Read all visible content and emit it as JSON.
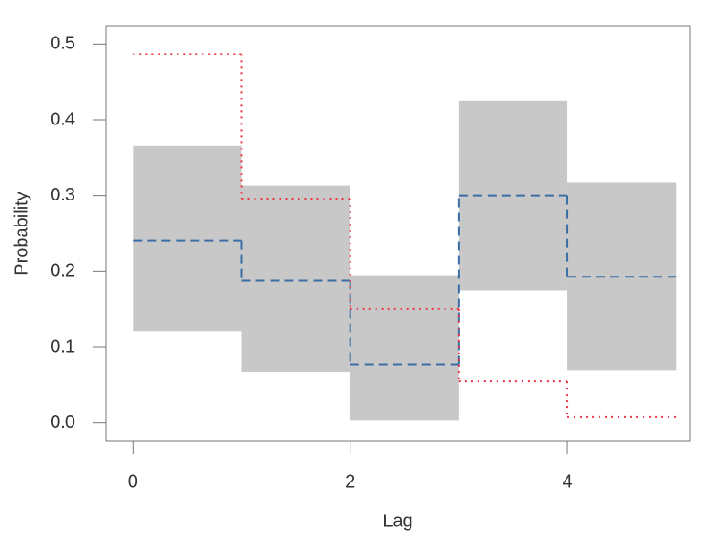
{
  "chart_data": {
    "type": "step",
    "x_label": "Lag",
    "y_label": "Probability",
    "bins": [
      0,
      1,
      2,
      3,
      4,
      5
    ],
    "band": {
      "color": "#c8c8c8",
      "lower": [
        0.121,
        0.067,
        0.004,
        0.175,
        0.07
      ],
      "upper": [
        0.366,
        0.313,
        0.195,
        0.425,
        0.318
      ]
    },
    "lines": [
      {
        "color": "#3a6ea5",
        "style": "dashed",
        "values": [
          0.241,
          0.188,
          0.077,
          0.3,
          0.193
        ]
      },
      {
        "color": "#ee3344",
        "style": "dotted",
        "values": [
          0.487,
          0.296,
          0.151,
          0.055,
          0.008
        ]
      }
    ],
    "xlim": [
      -0.25,
      5.13
    ],
    "ylim": [
      -0.024,
      0.524
    ],
    "xticks": [
      0,
      2,
      4
    ],
    "yticks": [
      {
        "value": 0,
        "label": "0.0"
      },
      0.1,
      0.2,
      0.3,
      0.4,
      0.5
    ]
  }
}
